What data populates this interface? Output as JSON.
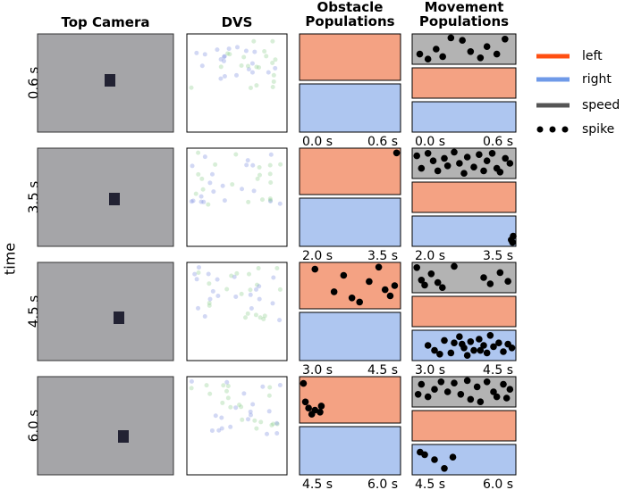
{
  "chart_data": {
    "type": "raster",
    "column_titles": [
      "Top Camera",
      "DVS",
      "Obstacle Populations",
      "Movement Populations"
    ],
    "y_label": "time",
    "legend": [
      {
        "name": "left",
        "color": "#ff4f12"
      },
      {
        "name": "right",
        "color": "#6f9ae8"
      },
      {
        "name": "speed",
        "color": "#555555"
      },
      {
        "name": "spike",
        "color": "#000000"
      }
    ],
    "fills": {
      "left": "#f4a283",
      "right": "#aec6f0",
      "speed": "#b3b3b3"
    },
    "rows": [
      {
        "label": "0.6 s",
        "xlim": [
          0,
          0.6
        ],
        "xticks": [
          {
            "value": 0,
            "label": "0.0 s"
          },
          {
            "value": 0.6,
            "label": "0.6 s"
          }
        ],
        "obstacle": {
          "left": {
            "t": [],
            "y": []
          },
          "right": {
            "t": [],
            "y": []
          }
        },
        "movement": {
          "speed": {
            "t": [
              0.03,
              0.08,
              0.13,
              0.17,
              0.22,
              0.29,
              0.34,
              0.4,
              0.44,
              0.5,
              0.55
            ],
            "y": [
              0.3,
              0.1,
              0.5,
              0.2,
              0.95,
              0.85,
              0.4,
              0.15,
              0.6,
              0.3,
              0.9
            ]
          },
          "left": {
            "t": [],
            "y": []
          },
          "right": {
            "t": [],
            "y": []
          }
        }
      },
      {
        "label": "3.5 s",
        "xlim": [
          2.0,
          3.5
        ],
        "xticks": [
          {
            "value": 2.0,
            "label": "2.0 s"
          },
          {
            "value": 3.5,
            "label": "3.5 s"
          }
        ],
        "obstacle": {
          "left": {
            "t": [
              3.48
            ],
            "y": [
              0.95
            ]
          },
          "right": {
            "t": [],
            "y": []
          }
        },
        "movement": {
          "speed": {
            "t": [
              2.03,
              2.1,
              2.2,
              2.28,
              2.35,
              2.45,
              2.5,
              2.6,
              2.68,
              2.75,
              2.8,
              2.9,
              2.98,
              3.05,
              3.1,
              3.18,
              3.25,
              3.3,
              3.38,
              3.45
            ],
            "y": [
              0.8,
              0.3,
              0.9,
              0.6,
              0.2,
              0.7,
              0.4,
              0.95,
              0.5,
              0.1,
              0.75,
              0.35,
              0.85,
              0.2,
              0.6,
              0.9,
              0.3,
              0.15,
              0.7,
              0.5
            ]
          },
          "left": {
            "t": [],
            "y": []
          },
          "right": {
            "t": [
              3.47,
              3.49,
              3.5
            ],
            "y": [
              0.15,
              0.05,
              0.3
            ]
          }
        }
      },
      {
        "label": "4.5 s",
        "xlim": [
          3.0,
          4.5
        ],
        "xticks": [
          {
            "value": 3.0,
            "label": "3.0 s"
          },
          {
            "value": 4.5,
            "label": "4.5 s"
          }
        ],
        "obstacle": {
          "left": {
            "t": [
              3.2,
              3.5,
              3.65,
              3.78,
              3.9,
              4.05,
              4.2,
              4.3,
              4.38,
              4.45
            ],
            "y": [
              0.9,
              0.35,
              0.75,
              0.2,
              0.1,
              0.6,
              0.95,
              0.4,
              0.25,
              0.5
            ]
          },
          "right": {
            "t": [],
            "y": []
          }
        },
        "movement": {
          "speed": {
            "t": [
              3.03,
              3.1,
              3.15,
              3.25,
              3.35,
              3.42,
              3.6,
              4.05,
              4.15,
              4.3,
              4.42
            ],
            "y": [
              0.9,
              0.4,
              0.2,
              0.65,
              0.3,
              0.1,
              0.95,
              0.5,
              0.25,
              0.7,
              0.35
            ]
          },
          "left": {
            "t": [],
            "y": []
          },
          "right": {
            "t": [
              3.2,
              3.3,
              3.45,
              3.55,
              3.6,
              3.68,
              3.75,
              3.8,
              3.85,
              3.9,
              3.98,
              4.05,
              4.1,
              4.15,
              4.2,
              4.28,
              4.35,
              4.42,
              4.48,
              3.38,
              3.72,
              4.0
            ],
            "y": [
              0.5,
              0.3,
              0.7,
              0.2,
              0.6,
              0.85,
              0.4,
              0.1,
              0.65,
              0.3,
              0.75,
              0.5,
              0.2,
              0.9,
              0.45,
              0.6,
              0.25,
              0.55,
              0.4,
              0.15,
              0.55,
              0.3
            ]
          }
        }
      },
      {
        "label": "6.0 s",
        "xlim": [
          4.5,
          6.0
        ],
        "xticks": [
          {
            "value": 4.5,
            "label": "4.5 s"
          },
          {
            "value": 6.0,
            "label": "6.0 s"
          }
        ],
        "obstacle": {
          "left": {
            "t": [
              4.52,
              4.55,
              4.6,
              4.65,
              4.7,
              4.78,
              4.8
            ],
            "y": [
              0.9,
              0.45,
              0.3,
              0.15,
              0.25,
              0.2,
              0.35
            ]
          },
          "right": {
            "t": [],
            "y": []
          }
        },
        "movement": {
          "speed": {
            "t": [
              4.55,
              4.6,
              4.7,
              4.8,
              4.9,
              5.0,
              5.1,
              5.2,
              5.3,
              5.35,
              5.45,
              5.5,
              5.6,
              5.7,
              5.75,
              5.85,
              5.9,
              5.95
            ],
            "y": [
              0.4,
              0.8,
              0.3,
              0.6,
              0.9,
              0.5,
              0.85,
              0.4,
              0.95,
              0.2,
              0.7,
              0.1,
              0.9,
              0.5,
              0.3,
              0.8,
              0.25,
              0.6
            ]
          },
          "left": {
            "t": [],
            "y": []
          },
          "right": {
            "t": [
              4.58,
              4.65,
              4.8,
              4.95,
              5.08
            ],
            "y": [
              0.8,
              0.7,
              0.5,
              0.15,
              0.6
            ]
          }
        }
      }
    ]
  }
}
